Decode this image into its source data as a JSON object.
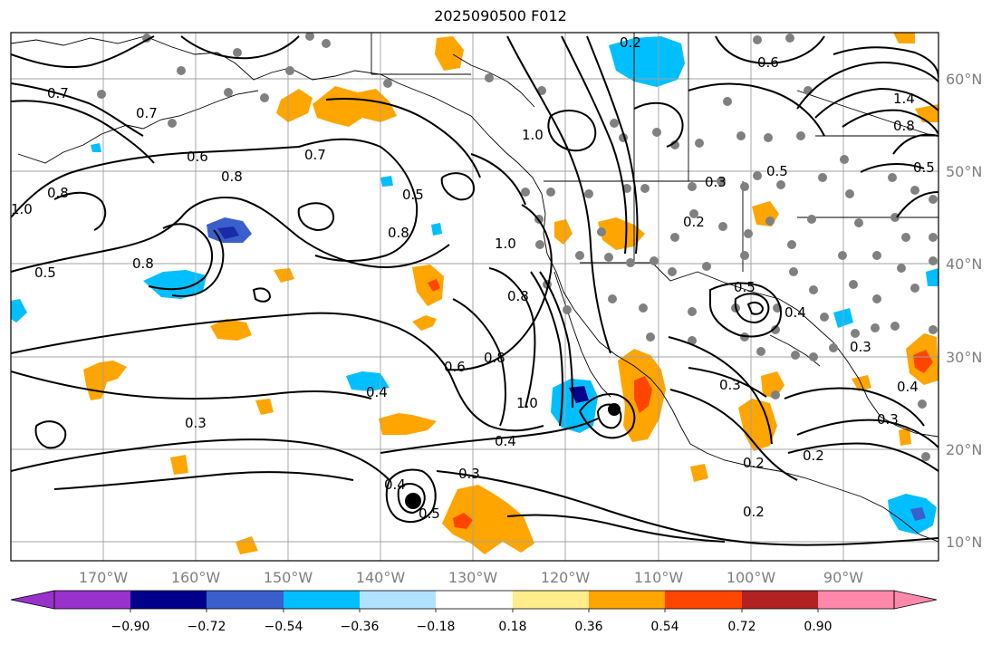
{
  "title": "2025090500 F012",
  "lat_labels": [
    "60°N",
    "50°N",
    "40°N",
    "30°N",
    "20°N",
    "10°N"
  ],
  "lon_labels": [
    "170°W",
    "160°W",
    "150°W",
    "140°W",
    "130°W",
    "120°W",
    "110°W",
    "100°W",
    "90°W"
  ],
  "colorbar": {
    "tick_labels": [
      "−0.90",
      "−0.72",
      "−0.54",
      "−0.36",
      "−0.18",
      "0.18",
      "0.36",
      "0.54",
      "0.72",
      "0.90"
    ],
    "colors": [
      "#9932cc",
      "#00008b",
      "#3a5fcd",
      "#00bfff",
      "#b0e2ff",
      "#ffffff",
      "#ffec8b",
      "#ffa500",
      "#ff4500",
      "#b22222",
      "#ff88aa"
    ]
  },
  "contour_labels": [
    "0.7",
    "0.7",
    "0.6",
    "0.8",
    "0.8",
    "1.0",
    "0.5",
    "0.8",
    "0.7",
    "0.5",
    "0.8",
    "0.6",
    "0.8",
    "1.0",
    "0.4",
    "0.3",
    "0.4",
    "0.3",
    "0.5",
    "0.4",
    "1.0",
    "0.8",
    "1.0",
    "0.2",
    "0.6",
    "0.3",
    "0.2",
    "0.5",
    "1.4",
    "0.8",
    "0.5",
    "0.5",
    "0.4",
    "0.3",
    "0.2",
    "0.2",
    "0.3",
    "0.3",
    "0.4",
    "0.2"
  ],
  "fills": {
    "orange": "#ffa500",
    "blue": "#00bfff",
    "navy": "#3a5fcd",
    "red": "#ff4500",
    "yellow": "#ffec8b"
  }
}
